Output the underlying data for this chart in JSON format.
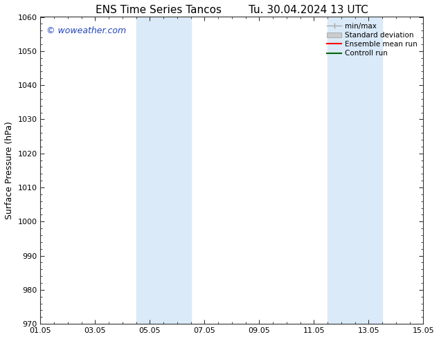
{
  "title_left": "ENS Time Series Tancos",
  "title_right": "Tu. 30.04.2024 13 UTC",
  "ylabel": "Surface Pressure (hPa)",
  "ylim": [
    970,
    1060
  ],
  "yticks": [
    970,
    980,
    990,
    1000,
    1010,
    1020,
    1030,
    1040,
    1050,
    1060
  ],
  "xlim": [
    0,
    14
  ],
  "xtick_positions": [
    0,
    2,
    4,
    6,
    8,
    10,
    12,
    14
  ],
  "xtick_labels": [
    "01.05",
    "03.05",
    "05.05",
    "07.05",
    "09.05",
    "11.05",
    "13.05",
    "15.05"
  ],
  "watermark": "© woweather.com",
  "watermark_color": "#2244bb",
  "background_color": "#ffffff",
  "plot_bg_color": "#ffffff",
  "shaded_bands": [
    {
      "x_start": 3.5,
      "x_end": 5.5
    },
    {
      "x_start": 10.5,
      "x_end": 12.5
    }
  ],
  "shade_color": "#daeaf8",
  "legend_entries": [
    {
      "label": "min/max",
      "color": "#aaaaaa",
      "lw": 1.0,
      "type": "minmax"
    },
    {
      "label": "Standard deviation",
      "color": "#cccccc",
      "lw": 5,
      "type": "fill"
    },
    {
      "label": "Ensemble mean run",
      "color": "#ff0000",
      "lw": 1.5,
      "type": "line"
    },
    {
      "label": "Controll run",
      "color": "#006600",
      "lw": 1.5,
      "type": "line"
    }
  ],
  "title_fontsize": 11,
  "tick_fontsize": 8,
  "ylabel_fontsize": 9
}
